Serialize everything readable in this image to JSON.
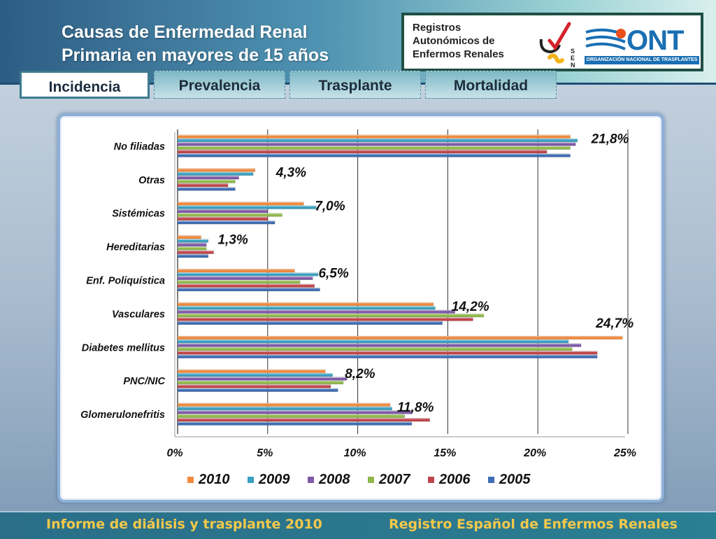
{
  "header": {
    "title_line1": "Causas de Enfermedad Renal",
    "title_line2": "Primaria en mayores de 15 años",
    "logo_text_line1": "Registros",
    "logo_text_line2": "Autonómicos de",
    "logo_text_line3": "Enfermos Renales",
    "sen_letters": "SEN",
    "ont_name": "ONT",
    "ont_subtitle": "ORGANIZACIÓN NACIONAL DE TRASPLANTES"
  },
  "tabs": [
    {
      "label": "Incidencia",
      "active": true
    },
    {
      "label": "Prevalencia",
      "active": false
    },
    {
      "label": "Trasplante",
      "active": false
    },
    {
      "label": "Mortalidad",
      "active": false
    }
  ],
  "chart_data": {
    "type": "bar",
    "orientation": "horizontal",
    "categories": [
      "No filiadas",
      "Otras",
      "Sistémicas",
      "Hereditarias",
      "Enf. Poliquística",
      "Vasculares",
      "Diabetes mellitus",
      "PNC/NIC",
      "Glomerulonefritis"
    ],
    "series": [
      {
        "name": "2010",
        "color": "#f08a3c",
        "values": [
          21.8,
          4.3,
          7.0,
          1.3,
          6.5,
          14.2,
          24.7,
          8.2,
          11.8
        ]
      },
      {
        "name": "2009",
        "color": "#3aa0c0",
        "values": [
          22.2,
          4.2,
          7.7,
          1.7,
          7.8,
          14.3,
          21.7,
          8.6,
          11.9
        ]
      },
      {
        "name": "2008",
        "color": "#7e5aa8",
        "values": [
          22.1,
          3.4,
          5.0,
          1.6,
          7.5,
          15.4,
          22.4,
          9.4,
          13.0
        ]
      },
      {
        "name": "2007",
        "color": "#8fb84a",
        "values": [
          21.8,
          3.2,
          5.8,
          1.6,
          6.8,
          17.0,
          21.9,
          9.2,
          12.6
        ]
      },
      {
        "name": "2006",
        "color": "#c0454a",
        "values": [
          20.5,
          2.8,
          5.0,
          2.0,
          7.6,
          16.4,
          23.3,
          8.5,
          14.0
        ]
      },
      {
        "name": "2005",
        "color": "#3f6db3",
        "values": [
          21.8,
          3.2,
          5.4,
          1.7,
          7.9,
          14.7,
          23.3,
          8.9,
          13.0
        ]
      }
    ],
    "value_labels": [
      "21,8%",
      "4,3%",
      "7,0%",
      "1,3%",
      "6,5%",
      "14,2%",
      "24,7%",
      "8,2%",
      "11,8%"
    ],
    "xlim": [
      0,
      25
    ],
    "x_ticks": [
      "0%",
      "5%",
      "10%",
      "15%",
      "20%",
      "25%"
    ],
    "grid": true,
    "legend_position": "bottom"
  },
  "footer": {
    "left": "Informe de diálisis y trasplante 2010",
    "right": "Registro Español de Enfermos Renales"
  }
}
